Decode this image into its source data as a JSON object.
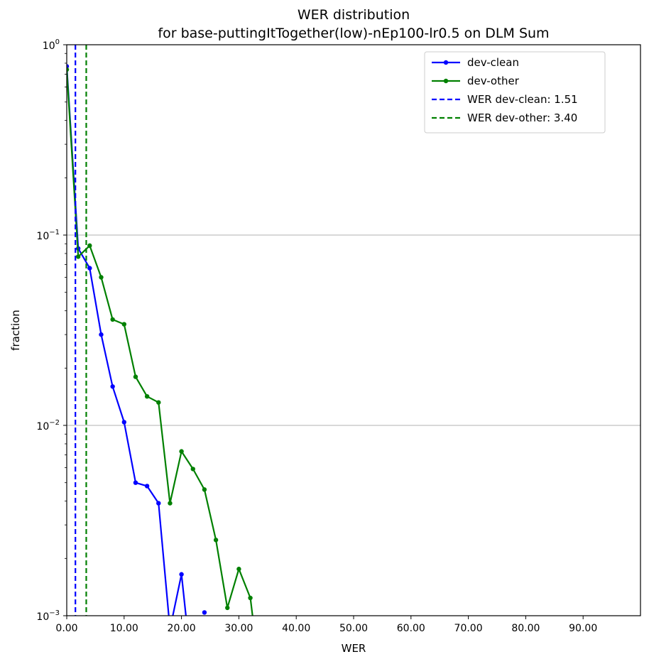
{
  "chart_data": {
    "type": "line",
    "title": "WER distribution",
    "subtitle": "for base-puttingItTogether(low)-nEp100-lr0.5 on DLM Sum",
    "xlabel": "WER",
    "ylabel": "fraction",
    "xlim": [
      0,
      100
    ],
    "ylim": [
      0.001,
      1
    ],
    "yscale": "log",
    "grid": "horizontal",
    "legend_position": "top-right",
    "x_ticks": [
      "0.00",
      "10.00",
      "20.00",
      "30.00",
      "40.00",
      "50.00",
      "60.00",
      "70.00",
      "80.00",
      "90.00"
    ],
    "y_ticks": [
      {
        "base": "10",
        "exp": "0",
        "value": 1
      },
      {
        "base": "10",
        "exp": "−1",
        "value": 0.1
      },
      {
        "base": "10",
        "exp": "−2",
        "value": 0.01
      },
      {
        "base": "10",
        "exp": "−3",
        "value": 0.001
      }
    ],
    "series": [
      {
        "name": "dev-clean",
        "color": "#0000ff",
        "style": "line-marker",
        "segments": [
          [
            [
              0,
              0.77
            ],
            [
              2,
              0.085
            ],
            [
              4,
              0.067
            ],
            [
              6,
              0.03
            ],
            [
              8,
              0.016
            ],
            [
              10,
              0.0104
            ],
            [
              12,
              0.005
            ],
            [
              14,
              0.0048
            ],
            [
              16,
              0.0039
            ],
            [
              18,
              0.00085
            ],
            [
              20,
              0.00165
            ],
            [
              22,
              0.00045
            ]
          ],
          [
            [
              24,
              0.00104
            ]
          ]
        ]
      },
      {
        "name": "dev-other",
        "color": "#008000",
        "style": "line-marker",
        "segments": [
          [
            [
              0,
              0.74
            ],
            [
              2,
              0.077
            ],
            [
              4,
              0.088
            ],
            [
              6,
              0.06
            ],
            [
              8,
              0.036
            ],
            [
              10,
              0.034
            ],
            [
              12,
              0.018
            ],
            [
              14,
              0.0142
            ],
            [
              16,
              0.0132
            ],
            [
              18,
              0.0039
            ],
            [
              20,
              0.0073
            ],
            [
              22,
              0.0059
            ],
            [
              24,
              0.0046
            ],
            [
              26,
              0.0025
            ],
            [
              28,
              0.0011
            ],
            [
              30,
              0.00176
            ],
            [
              32,
              0.00124
            ],
            [
              34,
              0.0004
            ]
          ]
        ]
      },
      {
        "name": "WER dev-clean: 1.51",
        "color": "#0000ff",
        "style": "vline-dashed",
        "x": 1.51
      },
      {
        "name": "WER dev-other: 3.40",
        "color": "#008000",
        "style": "vline-dashed",
        "x": 3.4
      }
    ]
  }
}
